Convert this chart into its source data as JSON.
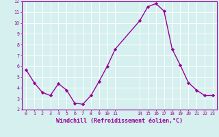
{
  "x": [
    0,
    1,
    2,
    3,
    4,
    5,
    6,
    7,
    8,
    9,
    10,
    11,
    14,
    15,
    16,
    17,
    18,
    19,
    20,
    21,
    22,
    23
  ],
  "y": [
    5.7,
    4.5,
    3.6,
    3.3,
    4.4,
    3.8,
    2.6,
    2.5,
    3.3,
    4.6,
    6.0,
    7.6,
    10.2,
    11.5,
    11.8,
    11.1,
    7.6,
    6.1,
    4.5,
    3.8,
    3.3,
    3.3
  ],
  "xlim": [
    -0.5,
    23.5
  ],
  "ylim": [
    2,
    12
  ],
  "xticks": [
    0,
    1,
    2,
    3,
    4,
    5,
    6,
    7,
    8,
    9,
    10,
    11,
    14,
    15,
    16,
    17,
    18,
    19,
    20,
    21,
    22,
    23
  ],
  "yticks": [
    2,
    3,
    4,
    5,
    6,
    7,
    8,
    9,
    10,
    11,
    12
  ],
  "xlabel": "Windchill (Refroidissement éolien,°C)",
  "line_color": "#990099",
  "marker": "D",
  "marker_size": 2.2,
  "bg_color": "#d5f0ee",
  "grid_color": "#ffffff",
  "label_color": "#990099",
  "tick_color": "#990099",
  "spine_color": "#990099",
  "linewidth": 1.0
}
